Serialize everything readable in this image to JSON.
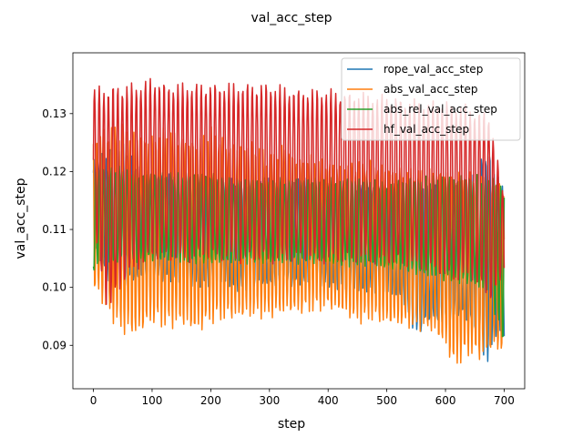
{
  "chart_data": {
    "type": "line",
    "title": "val_acc_step",
    "xlabel": "step",
    "ylabel": "val_acc_step",
    "xlim": [
      -35,
      735
    ],
    "ylim": [
      0.0825,
      0.1405
    ],
    "xticks": [
      0,
      100,
      200,
      300,
      400,
      500,
      600,
      700
    ],
    "yticks": [
      0.09,
      0.1,
      0.11,
      0.12,
      0.13
    ],
    "ytick_labels": [
      "0.09",
      "0.10",
      "0.11",
      "0.12",
      "0.13"
    ],
    "grid": false,
    "legend_position": "top-right",
    "series": [
      {
        "name": "rope_val_acc_step",
        "color": "#1f77b4",
        "x": [
          0,
          25,
          50,
          75,
          100,
          125,
          150,
          175,
          200,
          225,
          250,
          275,
          300,
          325,
          350,
          375,
          400,
          425,
          450,
          475,
          500,
          525,
          550,
          575,
          600,
          625,
          650,
          670,
          685,
          700
        ],
        "y_low": [
          0.107,
          0.101,
          0.1,
          0.101,
          0.101,
          0.101,
          0.1,
          0.1,
          0.1,
          0.1,
          0.099,
          0.1,
          0.1,
          0.1,
          0.1,
          0.1,
          0.1,
          0.099,
          0.099,
          0.099,
          0.098,
          0.098,
          0.091,
          0.094,
          0.093,
          0.095,
          0.092,
          0.0855,
          0.091,
          0.091
        ],
        "y_high": [
          0.122,
          0.124,
          0.1255,
          0.121,
          0.12,
          0.12,
          0.119,
          0.119,
          0.119,
          0.119,
          0.119,
          0.118,
          0.119,
          0.119,
          0.119,
          0.119,
          0.118,
          0.118,
          0.118,
          0.118,
          0.118,
          0.118,
          0.118,
          0.118,
          0.118,
          0.119,
          0.12,
          0.125,
          0.121,
          0.118
        ]
      },
      {
        "name": "abs_val_acc_step",
        "color": "#ff7f0e",
        "x": [
          0,
          25,
          50,
          75,
          100,
          125,
          150,
          175,
          200,
          225,
          250,
          275,
          300,
          325,
          350,
          375,
          400,
          425,
          450,
          475,
          500,
          525,
          550,
          575,
          600,
          615,
          640,
          660,
          685,
          700
        ],
        "y_low": [
          0.0995,
          0.095,
          0.0915,
          0.091,
          0.0935,
          0.0925,
          0.093,
          0.0915,
          0.0935,
          0.094,
          0.094,
          0.0945,
          0.0945,
          0.095,
          0.095,
          0.0955,
          0.096,
          0.095,
          0.0935,
          0.094,
          0.093,
          0.093,
          0.0925,
          0.092,
          0.089,
          0.0855,
          0.088,
          0.087,
          0.089,
          0.0875
        ],
        "y_high": [
          0.1265,
          0.128,
          0.1285,
          0.1275,
          0.1265,
          0.128,
          0.1265,
          0.126,
          0.128,
          0.1255,
          0.1255,
          0.1255,
          0.123,
          0.1255,
          0.1225,
          0.123,
          0.122,
          0.122,
          0.122,
          0.122,
          0.1215,
          0.121,
          0.1205,
          0.121,
          0.121,
          0.12,
          0.12,
          0.12,
          0.119,
          0.118
        ]
      },
      {
        "name": "abs_rel_val_acc_step",
        "color": "#2ca02c",
        "x": [
          0,
          25,
          50,
          75,
          100,
          125,
          150,
          175,
          200,
          225,
          250,
          275,
          300,
          325,
          350,
          375,
          400,
          425,
          450,
          475,
          500,
          525,
          550,
          575,
          600,
          625,
          650,
          675,
          700
        ],
        "y_low": [
          0.1025,
          0.1035,
          0.1045,
          0.104,
          0.1045,
          0.1045,
          0.104,
          0.104,
          0.104,
          0.104,
          0.104,
          0.104,
          0.104,
          0.104,
          0.104,
          0.104,
          0.104,
          0.1035,
          0.1035,
          0.1035,
          0.103,
          0.103,
          0.102,
          0.1015,
          0.101,
          0.1005,
          0.1,
          0.0985,
          0.0895
        ],
        "y_high": [
          0.1205,
          0.121,
          0.121,
          0.12,
          0.12,
          0.12,
          0.12,
          0.12,
          0.12,
          0.119,
          0.119,
          0.119,
          0.119,
          0.119,
          0.119,
          0.119,
          0.119,
          0.119,
          0.119,
          0.119,
          0.118,
          0.119,
          0.119,
          0.1195,
          0.1195,
          0.1195,
          0.1195,
          0.1195,
          0.118
        ]
      },
      {
        "name": "hf_val_acc_step",
        "color": "#d62728",
        "x": [
          0,
          25,
          50,
          75,
          100,
          125,
          150,
          175,
          200,
          225,
          250,
          275,
          300,
          325,
          350,
          375,
          400,
          425,
          450,
          475,
          500,
          525,
          550,
          575,
          600,
          625,
          650,
          675,
          700
        ],
        "y_low": [
          0.1095,
          0.095,
          0.1,
          0.103,
          0.1045,
          0.1045,
          0.104,
          0.1045,
          0.1045,
          0.1045,
          0.104,
          0.104,
          0.104,
          0.104,
          0.1045,
          0.104,
          0.104,
          0.104,
          0.104,
          0.104,
          0.1035,
          0.1035,
          0.103,
          0.1025,
          0.101,
          0.101,
          0.101,
          0.097,
          0.1015
        ],
        "y_high": [
          0.1345,
          0.1355,
          0.1355,
          0.1355,
          0.1365,
          0.1355,
          0.1355,
          0.1355,
          0.1355,
          0.1355,
          0.1355,
          0.1355,
          0.1355,
          0.135,
          0.1345,
          0.1345,
          0.1345,
          0.134,
          0.134,
          0.1335,
          0.1335,
          0.133,
          0.1325,
          0.1325,
          0.1325,
          0.132,
          0.131,
          0.1305,
          0.1155
        ]
      }
    ]
  }
}
